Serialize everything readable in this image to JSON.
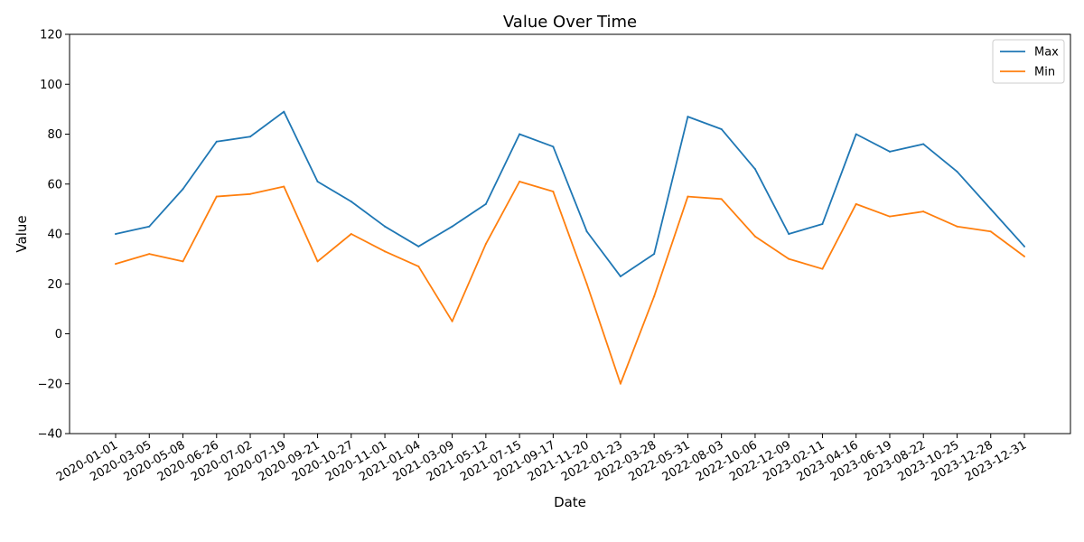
{
  "chart_data": {
    "type": "line",
    "title": "Value Over Time",
    "xlabel": "Date",
    "ylabel": "Value",
    "ylim": [
      -40,
      120
    ],
    "yticks": [
      -40,
      -20,
      0,
      20,
      40,
      60,
      80,
      100,
      120
    ],
    "grid": false,
    "legend_position": "top-right",
    "categories": [
      "2020-01-01",
      "2020-03-05",
      "2020-05-08",
      "2020-06-26",
      "2020-07-02",
      "2020-07-19",
      "2020-09-21",
      "2020-10-27",
      "2020-11-01",
      "2021-01-04",
      "2021-03-09",
      "2021-05-12",
      "2021-07-15",
      "2021-09-17",
      "2021-11-20",
      "2022-01-23",
      "2022-03-28",
      "2022-05-31",
      "2022-08-03",
      "2022-10-06",
      "2022-12-09",
      "2023-02-11",
      "2023-04-16",
      "2023-06-19",
      "2023-08-22",
      "2023-10-25",
      "2023-12-28",
      "2023-12-31"
    ],
    "series": [
      {
        "name": "Max",
        "color": "#1f77b4",
        "values": [
          40,
          43,
          58,
          77,
          79,
          89,
          61,
          53,
          43,
          35,
          43,
          52,
          80,
          75,
          41,
          23,
          32,
          87,
          82,
          66,
          40,
          44,
          80,
          73,
          76,
          65,
          50,
          35
        ]
      },
      {
        "name": "Min",
        "color": "#ff7f0e",
        "values": [
          28,
          32,
          29,
          55,
          56,
          59,
          29,
          40,
          33,
          27,
          5,
          36,
          61,
          57,
          20,
          -20,
          15,
          55,
          54,
          39,
          30,
          26,
          52,
          47,
          49,
          43,
          41,
          31
        ]
      }
    ]
  }
}
